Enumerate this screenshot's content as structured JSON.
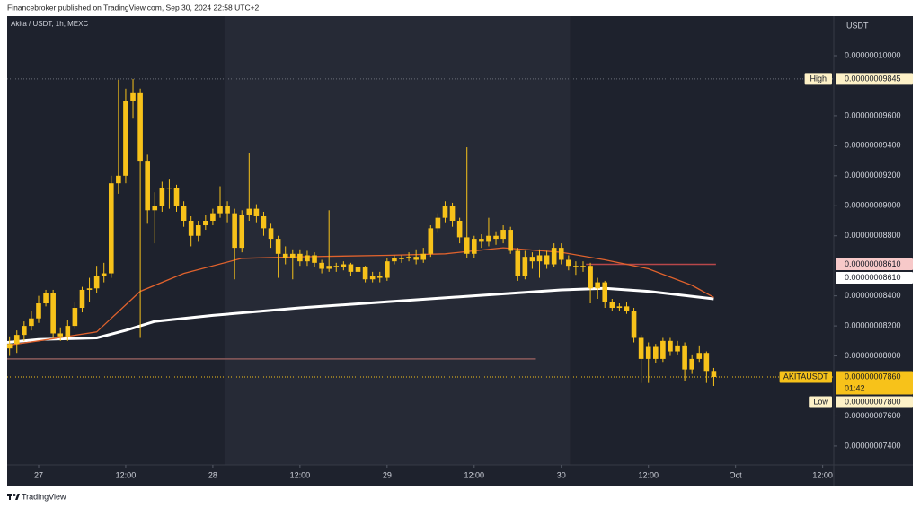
{
  "header": "Financebroker published on TradingView.com, Sep 30, 2024 22:58 UTC+2",
  "footer": "TradingView",
  "chart_data": {
    "type": "candlestick",
    "title": "Akita / USDT, 1h, MEXC",
    "y_axis_label": "USDT",
    "color": "#f7c21a",
    "xlim": [
      -4.33,
      109.53
    ],
    "ylim": [
      7.274e-08,
      1.0263e-07
    ],
    "xticks": [
      {
        "value": 0,
        "label": "27"
      },
      {
        "value": 12,
        "label": "12:00"
      },
      {
        "value": 24,
        "label": "28"
      },
      {
        "value": 36,
        "label": "12:00"
      },
      {
        "value": 48,
        "label": "29"
      },
      {
        "value": 60,
        "label": "12:00"
      },
      {
        "value": 72,
        "label": "30"
      },
      {
        "value": 84,
        "label": "12:00"
      },
      {
        "value": 96,
        "label": "Oct"
      },
      {
        "value": 108,
        "label": "12:00"
      }
    ],
    "yticks": [
      {
        "value": 1e-07,
        "label": "0.00000010000"
      },
      {
        "value": 9.6e-08,
        "label": "0.00000009600"
      },
      {
        "value": 9.4e-08,
        "label": "0.00000009400"
      },
      {
        "value": 9.2e-08,
        "label": "0.00000009200"
      },
      {
        "value": 9e-08,
        "label": "0.00000009000"
      },
      {
        "value": 8.8e-08,
        "label": "0.00000008800"
      },
      {
        "value": 8.4e-08,
        "label": "0.00000008400"
      },
      {
        "value": 8.2e-08,
        "label": "0.00000008200"
      },
      {
        "value": 8e-08,
        "label": "0.00000008000"
      },
      {
        "value": 7.6e-08,
        "label": "0.00000007600"
      },
      {
        "value": 7.4e-08,
        "label": "0.00000007400"
      }
    ],
    "x": [
      -4,
      -3,
      -2,
      -1,
      0,
      1,
      2,
      3,
      4,
      5,
      6,
      7,
      8,
      9,
      10,
      11,
      12,
      13,
      14,
      15,
      16,
      17,
      18,
      19,
      20,
      21,
      22,
      23,
      24,
      25,
      26,
      27,
      28,
      29,
      30,
      31,
      32,
      33,
      34,
      35,
      36,
      37,
      38,
      39,
      40,
      41,
      42,
      43,
      44,
      45,
      46,
      47,
      48,
      49,
      50,
      51,
      52,
      53,
      54,
      55,
      56,
      57,
      58,
      59,
      60,
      61,
      62,
      63,
      64,
      65,
      66,
      67,
      68,
      69,
      70,
      71,
      72,
      73,
      74,
      75,
      76,
      77,
      78,
      79,
      80,
      81,
      82,
      83,
      84,
      85,
      86,
      87,
      88,
      89,
      90,
      91,
      92,
      93
    ],
    "open": [
      8.05e-08,
      8.08e-08,
      8.14e-08,
      8.2e-08,
      8.25e-08,
      8.35e-08,
      8.42e-08,
      8.15e-08,
      8.13e-08,
      8.2e-08,
      8.32e-08,
      8.44e-08,
      8.45e-08,
      8.53e-08,
      8.55e-08,
      9.15e-08,
      9.2e-08,
      9.7e-08,
      9.75e-08,
      9.3e-08,
      8.97e-08,
      9e-08,
      9.12e-08,
      9.12e-08,
      9e-08,
      8.9e-08,
      8.8e-08,
      8.87e-08,
      8.9e-08,
      8.95e-08,
      9e-08,
      8.95e-08,
      8.72e-08,
      8.94e-08,
      8.98e-08,
      8.93e-08,
      8.85e-08,
      8.78e-08,
      8.68e-08,
      8.65e-08,
      8.68e-08,
      8.63e-08,
      8.67e-08,
      8.62e-08,
      8.58e-08,
      8.6e-08,
      8.59e-08,
      8.61e-08,
      8.56e-08,
      8.59e-08,
      8.51e-08,
      8.53e-08,
      8.52e-08,
      8.63e-08,
      8.65e-08,
      8.65e-08,
      8.66e-08,
      8.64e-08,
      8.68e-08,
      8.85e-08,
      8.92e-08,
      9e-08,
      8.9e-08,
      8.79e-08,
      8.68e-08,
      8.78e-08,
      8.76e-08,
      8.8e-08,
      8.78e-08,
      8.84e-08,
      8.7e-08,
      8.53e-08,
      8.66e-08,
      8.63e-08,
      8.67e-08,
      8.61e-08,
      8.72e-08,
      8.64e-08,
      8.6e-08,
      8.59e-08,
      8.6e-08,
      8.45e-08,
      8.49e-08,
      8.36e-08,
      8.32e-08,
      8.33e-08,
      8.3e-08,
      8.12e-08,
      7.98e-08,
      8.06e-08,
      7.98e-08,
      8.1e-08,
      8.03e-08,
      8.07e-08,
      7.91e-08,
      7.98e-08,
      8.02e-08,
      7.9e-08
    ],
    "high": [
      8.13e-08,
      8.17e-08,
      8.23e-08,
      8.3e-08,
      8.4e-08,
      8.44e-08,
      8.44e-08,
      8.19e-08,
      8.24e-08,
      8.36e-08,
      8.46e-08,
      8.52e-08,
      8.6e-08,
      8.62e-08,
      9.2e-08,
      9.84e-08,
      9.78e-08,
      9.845e-08,
      9.78e-08,
      9.34e-08,
      9.09e-08,
      9.16e-08,
      9.18e-08,
      9.14e-08,
      9.03e-08,
      8.93e-08,
      8.9e-08,
      8.94e-08,
      8.98e-08,
      9.13e-08,
      9.03e-08,
      8.98e-08,
      8.97e-08,
      9.35e-08,
      9.01e-08,
      8.96e-08,
      8.88e-08,
      8.8e-08,
      8.73e-08,
      8.71e-08,
      8.71e-08,
      8.7e-08,
      8.69e-08,
      8.64e-08,
      8.97e-08,
      8.62e-08,
      8.63e-08,
      8.62e-08,
      8.62e-08,
      8.6e-08,
      8.56e-08,
      8.56e-08,
      8.65e-08,
      8.67e-08,
      8.67e-08,
      8.69e-08,
      8.71e-08,
      8.72e-08,
      8.87e-08,
      8.95e-08,
      9.03e-08,
      9.02e-08,
      8.92e-08,
      9.39e-08,
      8.8e-08,
      8.81e-08,
      8.92e-08,
      8.83e-08,
      8.87e-08,
      8.86e-08,
      8.72e-08,
      8.7e-08,
      8.69e-08,
      8.71e-08,
      8.7e-08,
      8.75e-08,
      8.75e-08,
      8.67e-08,
      8.63e-08,
      8.63e-08,
      8.62e-08,
      8.52e-08,
      8.5e-08,
      8.38e-08,
      8.35e-08,
      8.36e-08,
      8.32e-08,
      8.14e-08,
      8.09e-08,
      8.08e-08,
      8.12e-08,
      8.12e-08,
      8.1e-08,
      8.09e-08,
      8.01e-08,
      8.07e-08,
      8.03e-08,
      7.92e-08
    ],
    "low": [
      8e-08,
      8.02e-08,
      8.1e-08,
      8.17e-08,
      8.22e-08,
      8.33e-08,
      8.12e-08,
      8.1e-08,
      8.1e-08,
      8.18e-08,
      8.29e-08,
      8.36e-08,
      8.42e-08,
      8.49e-08,
      8.52e-08,
      9.08e-08,
      9.15e-08,
      9.58e-08,
      8.12e-08,
      8.88e-08,
      8.75e-08,
      8.96e-08,
      8.98e-08,
      8.96e-08,
      8.86e-08,
      8.73e-08,
      8.76e-08,
      8.84e-08,
      8.87e-08,
      8.92e-08,
      8.89e-08,
      8.51e-08,
      8.69e-08,
      8.9e-08,
      8.89e-08,
      8.8e-08,
      8.72e-08,
      8.52e-08,
      8.61e-08,
      8.51e-08,
      8.6e-08,
      8.6e-08,
      8.59e-08,
      8.55e-08,
      8.56e-08,
      8.56e-08,
      8.57e-08,
      8.53e-08,
      8.53e-08,
      8.49e-08,
      8.49e-08,
      8.49e-08,
      8.5e-08,
      8.61e-08,
      8.62e-08,
      8.63e-08,
      8.61e-08,
      8.62e-08,
      8.66e-08,
      8.82e-08,
      8.89e-08,
      8.86e-08,
      8.75e-08,
      8.65e-08,
      8.65e-08,
      8.72e-08,
      8.73e-08,
      8.74e-08,
      8.75e-08,
      8.68e-08,
      8.5e-08,
      8.51e-08,
      8.58e-08,
      8.52e-08,
      8.58e-08,
      8.59e-08,
      8.61e-08,
      8.57e-08,
      8.54e-08,
      8.56e-08,
      8.35e-08,
      8.38e-08,
      8.32e-08,
      8.3e-08,
      8.3e-08,
      8.28e-08,
      8.09e-08,
      7.82e-08,
      7.82e-08,
      7.95e-08,
      7.96e-08,
      8e-08,
      8.01e-08,
      7.83e-08,
      7.88e-08,
      7.96e-08,
      7.82e-08,
      7.8e-08
    ],
    "close": [
      8.08e-08,
      8.14e-08,
      8.2e-08,
      8.25e-08,
      8.35e-08,
      8.42e-08,
      8.15e-08,
      8.13e-08,
      8.2e-08,
      8.32e-08,
      8.44e-08,
      8.45e-08,
      8.53e-08,
      8.55e-08,
      9.15e-08,
      9.2e-08,
      9.7e-08,
      9.75e-08,
      9.3e-08,
      8.97e-08,
      9e-08,
      9.12e-08,
      9.12e-08,
      9e-08,
      8.9e-08,
      8.8e-08,
      8.87e-08,
      8.9e-08,
      8.95e-08,
      9e-08,
      8.95e-08,
      8.72e-08,
      8.94e-08,
      8.98e-08,
      8.93e-08,
      8.85e-08,
      8.78e-08,
      8.68e-08,
      8.65e-08,
      8.68e-08,
      8.63e-08,
      8.67e-08,
      8.62e-08,
      8.58e-08,
      8.6e-08,
      8.59e-08,
      8.61e-08,
      8.56e-08,
      8.59e-08,
      8.51e-08,
      8.53e-08,
      8.52e-08,
      8.63e-08,
      8.65e-08,
      8.65e-08,
      8.66e-08,
      8.64e-08,
      8.68e-08,
      8.85e-08,
      8.92e-08,
      9e-08,
      8.9e-08,
      8.79e-08,
      8.68e-08,
      8.78e-08,
      8.76e-08,
      8.8e-08,
      8.78e-08,
      8.84e-08,
      8.7e-08,
      8.53e-08,
      8.66e-08,
      8.63e-08,
      8.67e-08,
      8.61e-08,
      8.72e-08,
      8.64e-08,
      8.6e-08,
      8.59e-08,
      8.6e-08,
      8.45e-08,
      8.49e-08,
      8.36e-08,
      8.32e-08,
      8.33e-08,
      8.3e-08,
      8.12e-08,
      7.98e-08,
      8.06e-08,
      7.98e-08,
      8.1e-08,
      8.03e-08,
      8.07e-08,
      7.91e-08,
      7.98e-08,
      8.02e-08,
      7.9e-08,
      7.86e-08
    ],
    "overlays": [
      {
        "color": "#ffffff",
        "x": [
          -4.33,
          0,
          8,
          12,
          16,
          24,
          36,
          48,
          60,
          72,
          78,
          84,
          93
        ],
        "values": [
          8.09e-08,
          8.11e-08,
          8.12e-08,
          8.17e-08,
          8.23e-08,
          8.27e-08,
          8.32e-08,
          8.36e-08,
          8.4e-08,
          8.44e-08,
          8.45e-08,
          8.43e-08,
          8.38e-08
        ]
      },
      {
        "color": "#e0622d",
        "x": [
          -4.33,
          0,
          8,
          10,
          14,
          20,
          28,
          36,
          48,
          56,
          64,
          72,
          78,
          84,
          90,
          93
        ],
        "values": [
          8.07e-08,
          8.1e-08,
          8.16e-08,
          8.25e-08,
          8.43e-08,
          8.55e-08,
          8.65e-08,
          8.66e-08,
          8.67e-08,
          8.68e-08,
          8.72e-08,
          8.69e-08,
          8.64e-08,
          8.58e-08,
          8.47e-08,
          8.39e-08
        ]
      }
    ],
    "hlines": [
      {
        "value": 7.98e-08,
        "color": "#8c5b5b"
      },
      {
        "value": 8.61e-08,
        "color": "#b8474a"
      }
    ],
    "price_tags": [
      {
        "tag": "High",
        "value": 9.845e-08,
        "label": "0.00000009845",
        "color": "#fdf1c7"
      },
      {
        "value": 8.61e-08,
        "label": "0.00000008610",
        "color": "#f7c9c9"
      },
      {
        "value": 8.61e-08,
        "label": "0.00000008610",
        "color": "#ffffff"
      },
      {
        "tag": "AKITAUSDT",
        "value": 7.86e-08,
        "label": "0.00000007860",
        "countdown": "01:42",
        "color": "#f7c21a"
      },
      {
        "tag": "Low",
        "value": 7.8e-08,
        "label": "0.00000007800",
        "color": "#fdf1c7"
      }
    ]
  }
}
